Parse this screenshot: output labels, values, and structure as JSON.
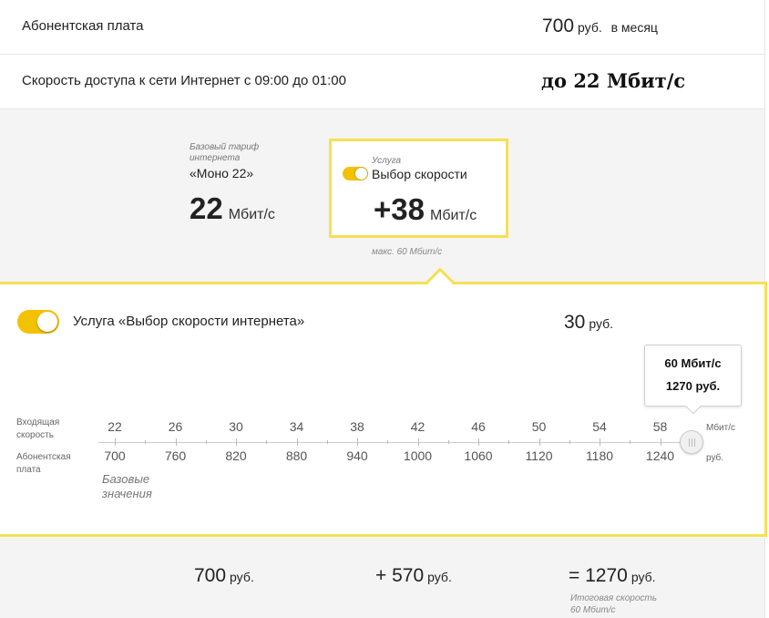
{
  "rows": {
    "fee_label": "Абонентская плата",
    "fee_value": "700",
    "fee_unit": "руб.",
    "fee_period": "в месяц",
    "speed_label": "Скорость доступа к сети Интернет с 09:00 до 01:00",
    "speed_value": "до 22 Мбит/с"
  },
  "base_tariff": {
    "caption": "Базовый тариф интернета",
    "name": "«Моно 22»",
    "value": "22",
    "unit": "Мбит/с"
  },
  "service_card": {
    "caption": "Услуга",
    "name": "Выбор скорости",
    "value": "+38",
    "unit": "Мбит/с",
    "toggle_on": true,
    "max_note": "макс. 60 Мбит/с"
  },
  "panel": {
    "title": "Услуга «Выбор скорости интернета»",
    "price": "30",
    "price_unit": "руб.",
    "toggle_on": true,
    "tooltip_speed": "60 Мбит/с",
    "tooltip_price": "1270 руб.",
    "speed_axis_label": "Входящая скорость",
    "price_axis_label": "Абонентская плата",
    "speed_unit": "Мбит/с",
    "price_unit_axis": "руб.",
    "base_values_label": "Базовые значения",
    "slider_value": 60,
    "speed_ticks": [
      "22",
      "26",
      "30",
      "34",
      "38",
      "42",
      "46",
      "50",
      "54",
      "58"
    ],
    "price_ticks": [
      "700",
      "760",
      "820",
      "880",
      "940",
      "1000",
      "1060",
      "1120",
      "1180",
      "1240"
    ]
  },
  "summary": {
    "base_price": "700",
    "base_unit": "руб.",
    "addon_price": "+ 570",
    "addon_unit": "руб.",
    "total_price": "= 1270",
    "total_unit": "руб.",
    "total_note_1": "Итоговая скорость",
    "total_note_2": "60 Мбит/с"
  },
  "colors": {
    "accent": "#f6e053",
    "toggle": "#f2c200"
  }
}
